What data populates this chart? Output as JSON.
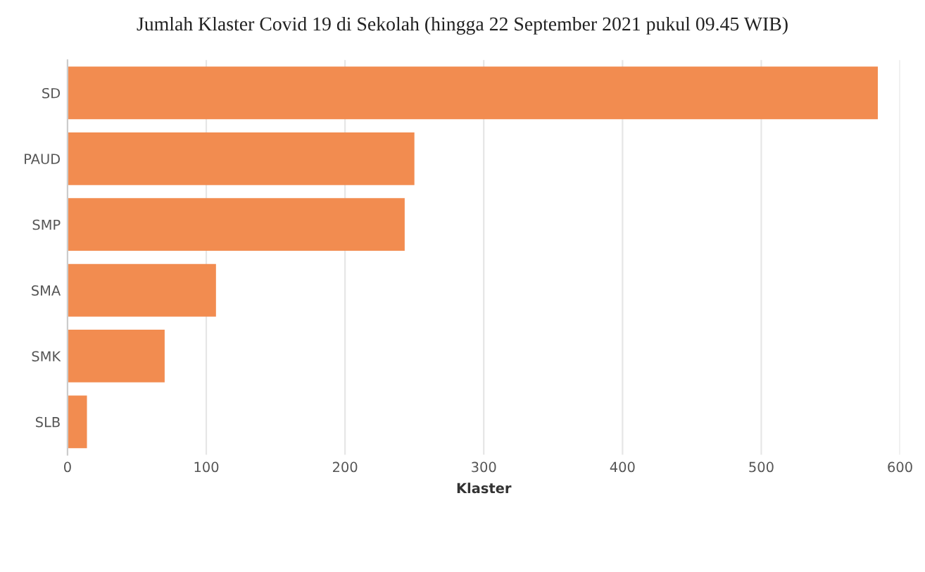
{
  "chart_data": {
    "type": "bar",
    "orientation": "horizontal",
    "title": "Jumlah Klaster Covid 19 di Sekolah (hingga 22 September 2021 pukul 09.45 WIB)",
    "xlabel": "Klaster",
    "categories": [
      "SD",
      "PAUD",
      "SMP",
      "SMA",
      "SMK",
      "SLB"
    ],
    "values": [
      584,
      250,
      243,
      107,
      70,
      14
    ],
    "color": "#f28c50",
    "xlim": [
      0,
      600
    ],
    "xticks": [
      0,
      100,
      200,
      300,
      400,
      500,
      600
    ],
    "grid": "x"
  }
}
